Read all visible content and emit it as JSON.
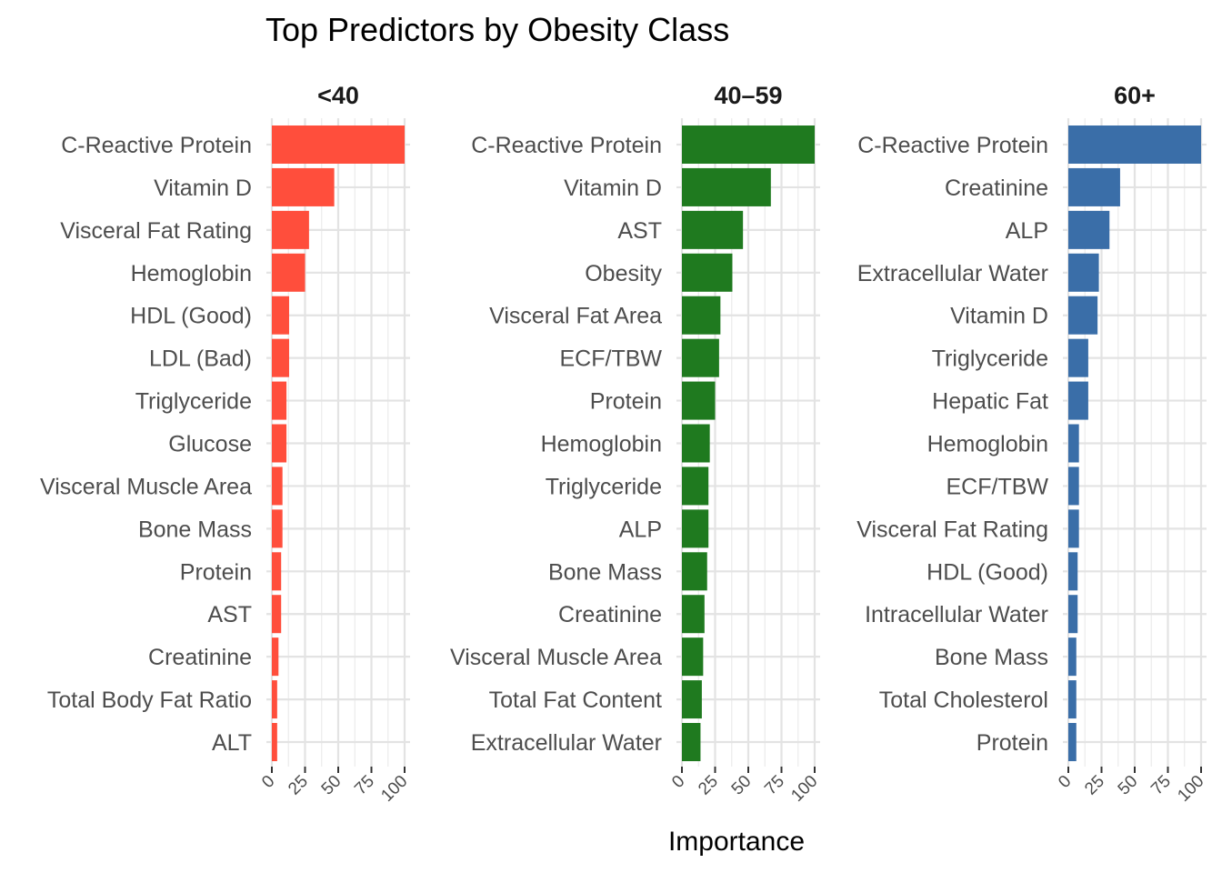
{
  "chart_data": {
    "type": "bar",
    "orientation": "horizontal",
    "title": "Top Predictors by Obesity Class",
    "xlabel": "Importance",
    "ylabel": "",
    "xlim": [
      0,
      100
    ],
    "xticks": [
      "0",
      "25",
      "50",
      "75",
      "100"
    ],
    "grid": true,
    "legend": "none",
    "facets": [
      {
        "label": "<40",
        "color": "#FF4E3C",
        "categories": [
          "C-Reactive Protein",
          "Vitamin D",
          "Visceral Fat Rating",
          "Hemoglobin",
          "HDL (Good)",
          "LDL (Bad)",
          "Triglyceride",
          "Glucose",
          "Visceral Muscle Area",
          "Bone Mass",
          "Protein",
          "AST",
          "Creatinine",
          "Total Body Fat Ratio",
          "ALT"
        ],
        "values": [
          100,
          47,
          28,
          25,
          13,
          13,
          11,
          11,
          8,
          8,
          7,
          7,
          5,
          4,
          4
        ]
      },
      {
        "label": "40–59",
        "color": "#1F7A1F",
        "categories": [
          "C-Reactive Protein",
          "Vitamin D",
          "AST",
          "Obesity",
          "Visceral Fat Area",
          "ECF/TBW",
          "Protein",
          "Hemoglobin",
          "Triglyceride",
          "ALP",
          "Bone Mass",
          "Creatinine",
          "Visceral Muscle Area",
          "Total Fat Content",
          "Extracellular Water"
        ],
        "values": [
          100,
          67,
          46,
          38,
          29,
          28,
          25,
          21,
          20,
          20,
          19,
          17,
          16,
          15,
          14
        ]
      },
      {
        "label": "60+",
        "color": "#3A6EA8",
        "categories": [
          "C-Reactive Protein",
          "Creatinine",
          "ALP",
          "Extracellular Water",
          "Vitamin D",
          "Triglyceride",
          "Hepatic Fat",
          "Hemoglobin",
          "ECF/TBW",
          "Visceral Fat Rating",
          "HDL (Good)",
          "Intracellular Water",
          "Bone Mass",
          "Total Cholesterol",
          "Protein"
        ],
        "values": [
          100,
          39,
          31,
          23,
          22,
          15,
          15,
          8,
          8,
          8,
          7,
          7,
          6,
          6,
          6
        ]
      }
    ]
  }
}
